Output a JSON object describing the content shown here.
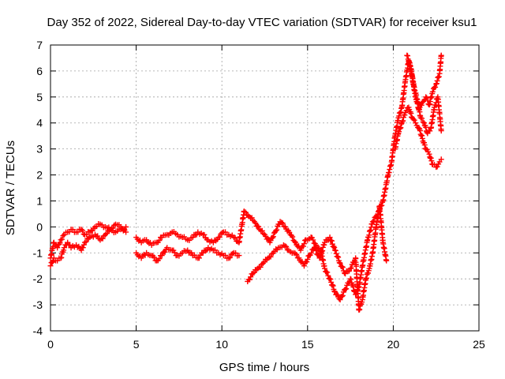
{
  "chart_data": {
    "type": "scatter",
    "title": "Day 352 of 2022, Sidereal Day-to-day VTEC variation (SDTVAR) for receiver ksu1",
    "xlabel": "GPS time / hours",
    "ylabel": "SDTVAR / TECUs",
    "xlim": [
      0,
      25
    ],
    "ylim": [
      -4,
      7
    ],
    "xticks": [
      0,
      5,
      10,
      15,
      20,
      25
    ],
    "yticks": [
      -4,
      -3,
      -2,
      -1,
      0,
      1,
      2,
      3,
      4,
      5,
      6,
      7
    ],
    "grid": true,
    "marker": "plus",
    "color": "#ff0000",
    "series": [
      {
        "values": [
          [
            0.0,
            -1.2
          ],
          [
            0.2,
            -0.6
          ],
          [
            0.4,
            -0.8
          ],
          [
            0.6,
            -0.5
          ],
          [
            0.8,
            -0.3
          ],
          [
            1.0,
            -0.2
          ],
          [
            1.2,
            -0.1
          ],
          [
            1.5,
            -0.2
          ],
          [
            1.8,
            -0.1
          ],
          [
            2.0,
            -0.3
          ],
          [
            2.3,
            -0.2
          ],
          [
            2.6,
            0.0
          ],
          [
            2.9,
            0.1
          ],
          [
            3.2,
            0.0
          ],
          [
            3.5,
            -0.1
          ],
          [
            3.8,
            0.1
          ],
          [
            4.1,
            0.0
          ],
          [
            4.4,
            -0.2
          ],
          [
            5.0,
            -0.4
          ],
          [
            5.3,
            -0.6
          ],
          [
            5.6,
            -0.5
          ],
          [
            5.9,
            -0.7
          ],
          [
            6.2,
            -0.6
          ],
          [
            6.5,
            -0.4
          ],
          [
            6.8,
            -0.3
          ],
          [
            7.1,
            -0.2
          ],
          [
            7.4,
            -0.3
          ],
          [
            7.7,
            -0.4
          ],
          [
            8.0,
            -0.5
          ],
          [
            8.3,
            -0.4
          ],
          [
            8.6,
            -0.2
          ],
          [
            8.9,
            -0.3
          ],
          [
            9.2,
            -0.5
          ],
          [
            9.5,
            -0.6
          ],
          [
            9.8,
            -0.4
          ],
          [
            10.1,
            -0.2
          ],
          [
            10.4,
            -0.3
          ],
          [
            10.7,
            -0.4
          ],
          [
            11.0,
            -0.6
          ],
          [
            11.3,
            0.6
          ],
          [
            11.6,
            0.4
          ],
          [
            11.9,
            0.2
          ],
          [
            12.2,
            -0.1
          ],
          [
            12.5,
            -0.3
          ],
          [
            12.8,
            -0.6
          ],
          [
            13.1,
            -0.2
          ],
          [
            13.4,
            0.2
          ],
          [
            13.7,
            0.0
          ],
          [
            14.0,
            -0.3
          ],
          [
            14.3,
            -0.6
          ],
          [
            14.6,
            -0.9
          ],
          [
            14.9,
            -0.5
          ],
          [
            15.2,
            -0.4
          ],
          [
            15.5,
            -0.7
          ],
          [
            15.8,
            -1.0
          ],
          [
            16.0,
            -1.6
          ],
          [
            16.3,
            -2.0
          ],
          [
            16.6,
            -2.5
          ],
          [
            16.9,
            -2.8
          ],
          [
            17.2,
            -2.4
          ],
          [
            17.5,
            -2.0
          ],
          [
            17.8,
            -2.6
          ],
          [
            18.0,
            -2.3
          ],
          [
            18.2,
            -1.5
          ],
          [
            18.5,
            -0.5
          ],
          [
            18.8,
            0.2
          ],
          [
            19.1,
            0.5
          ],
          [
            19.4,
            1.0
          ],
          [
            19.7,
            2.0
          ],
          [
            19.9,
            2.5
          ],
          [
            20.1,
            3.5
          ],
          [
            20.3,
            4.2
          ],
          [
            20.5,
            4.6
          ],
          [
            20.7,
            5.6
          ],
          [
            20.9,
            6.4
          ],
          [
            21.1,
            5.8
          ],
          [
            21.3,
            5.0
          ],
          [
            21.5,
            4.5
          ],
          [
            21.7,
            4.8
          ],
          [
            21.9,
            5.0
          ],
          [
            22.1,
            4.7
          ],
          [
            22.3,
            5.2
          ],
          [
            22.5,
            5.5
          ],
          [
            22.7,
            5.9
          ],
          [
            22.8,
            6.6
          ]
        ]
      },
      {
        "values": [
          [
            0.0,
            -1.5
          ],
          [
            0.2,
            -1.2
          ],
          [
            0.4,
            -1.3
          ],
          [
            0.6,
            -1.2
          ],
          [
            0.8,
            -0.8
          ],
          [
            1.0,
            -0.6
          ],
          [
            1.2,
            -0.8
          ],
          [
            1.5,
            -0.7
          ],
          [
            1.8,
            -0.9
          ],
          [
            2.0,
            -0.6
          ],
          [
            2.3,
            -0.4
          ],
          [
            2.6,
            -0.3
          ],
          [
            2.9,
            -0.5
          ],
          [
            3.2,
            -0.3
          ],
          [
            3.5,
            -0.1
          ],
          [
            3.8,
            -0.2
          ],
          [
            4.1,
            -0.1
          ],
          [
            4.4,
            0.0
          ],
          [
            5.0,
            -1.0
          ],
          [
            5.3,
            -1.2
          ],
          [
            5.6,
            -1.0
          ],
          [
            5.9,
            -1.1
          ],
          [
            6.2,
            -1.3
          ],
          [
            6.5,
            -1.1
          ],
          [
            6.8,
            -0.8
          ],
          [
            7.1,
            -0.9
          ],
          [
            7.4,
            -1.1
          ],
          [
            7.7,
            -1.0
          ],
          [
            8.0,
            -0.9
          ],
          [
            8.3,
            -1.1
          ],
          [
            8.6,
            -1.2
          ],
          [
            8.9,
            -1.0
          ],
          [
            9.2,
            -0.8
          ],
          [
            9.5,
            -0.9
          ],
          [
            9.8,
            -1.0
          ],
          [
            10.1,
            -1.1
          ],
          [
            10.4,
            -1.2
          ],
          [
            10.7,
            -1.0
          ],
          [
            11.0,
            -1.1
          ],
          [
            11.5,
            -2.1
          ],
          [
            11.8,
            -1.8
          ],
          [
            12.1,
            -1.6
          ],
          [
            12.4,
            -1.4
          ],
          [
            12.7,
            -1.2
          ],
          [
            13.0,
            -1.0
          ],
          [
            13.3,
            -0.8
          ],
          [
            13.6,
            -0.7
          ],
          [
            13.9,
            -0.9
          ],
          [
            14.2,
            -1.0
          ],
          [
            14.5,
            -1.2
          ],
          [
            14.8,
            -1.5
          ],
          [
            15.1,
            -1.1
          ],
          [
            15.4,
            -0.8
          ],
          [
            15.7,
            -1.2
          ],
          [
            16.0,
            -0.6
          ],
          [
            16.3,
            -0.4
          ],
          [
            16.6,
            -0.9
          ],
          [
            16.9,
            -1.4
          ],
          [
            17.2,
            -1.8
          ],
          [
            17.5,
            -1.6
          ],
          [
            17.8,
            -1.2
          ],
          [
            18.0,
            -3.2
          ],
          [
            18.2,
            -2.8
          ],
          [
            18.4,
            -2.0
          ],
          [
            18.6,
            -1.6
          ],
          [
            18.8,
            -1.0
          ],
          [
            19.0,
            0.0
          ],
          [
            19.2,
            0.8
          ],
          [
            19.4,
            -0.6
          ],
          [
            19.6,
            -1.3
          ],
          [
            20.1,
            3.0
          ],
          [
            20.3,
            3.6
          ],
          [
            20.5,
            4.0
          ],
          [
            20.7,
            4.4
          ],
          [
            20.9,
            4.6
          ],
          [
            21.1,
            4.2
          ],
          [
            21.3,
            4.0
          ],
          [
            21.5,
            3.8
          ],
          [
            21.7,
            3.4
          ],
          [
            21.9,
            3.0
          ],
          [
            22.1,
            2.8
          ],
          [
            22.3,
            2.4
          ],
          [
            22.5,
            2.3
          ],
          [
            22.7,
            2.5
          ],
          [
            22.8,
            2.6
          ]
        ]
      },
      {
        "values": [
          [
            20.8,
            6.6
          ],
          [
            21.0,
            6.2
          ],
          [
            21.2,
            5.4
          ],
          [
            21.4,
            4.9
          ],
          [
            21.6,
            4.2
          ],
          [
            21.8,
            4.0
          ],
          [
            22.0,
            3.6
          ],
          [
            22.2,
            3.8
          ],
          [
            22.4,
            4.6
          ],
          [
            22.6,
            5.0
          ],
          [
            22.8,
            3.7
          ]
        ]
      }
    ]
  }
}
